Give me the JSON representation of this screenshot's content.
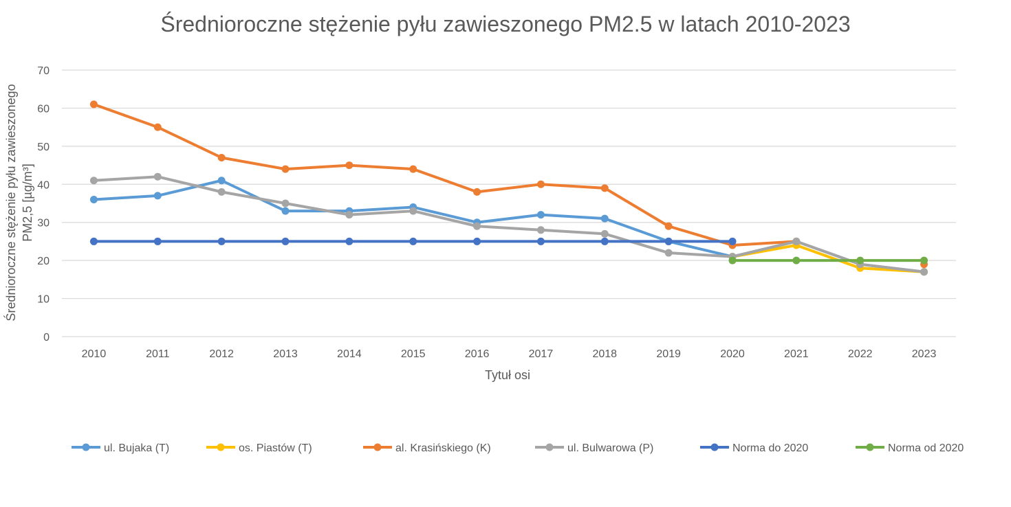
{
  "chart_data": {
    "type": "line",
    "title": "Średnioroczne stężenie pyłu zawieszonego PM2.5 w latach 2010-2023",
    "xlabel": "Tytuł osi",
    "ylabel_line1": "Średnioroczne stężenie pyłu zawieszonego",
    "ylabel_line2": "PM2,5 [µg/m³]",
    "ylim": [
      0,
      70
    ],
    "yticks": [
      "0",
      "10",
      "20",
      "30",
      "40",
      "50",
      "60",
      "70"
    ],
    "categories": [
      "2010",
      "2011",
      "2012",
      "2013",
      "2014",
      "2015",
      "2016",
      "2017",
      "2018",
      "2019",
      "2020",
      "2021",
      "2022",
      "2023"
    ],
    "grid": true,
    "legend_position": "bottom",
    "series": [
      {
        "name": "ul. Bujaka (T)",
        "color": "#5b9bd5",
        "values": [
          36,
          37,
          41,
          33,
          33,
          34,
          30,
          32,
          31,
          25,
          21,
          25,
          19,
          17
        ]
      },
      {
        "name": "os. Piastów (T)",
        "color": "#ffc000",
        "values": [
          null,
          null,
          null,
          null,
          null,
          null,
          null,
          null,
          null,
          null,
          21,
          24,
          18,
          17
        ]
      },
      {
        "name": "al. Krasińskiego (K)",
        "color": "#ed7d31",
        "values": [
          61,
          55,
          47,
          44,
          45,
          44,
          38,
          40,
          39,
          29,
          24,
          25,
          null,
          19
        ]
      },
      {
        "name": "ul. Bulwarowa (P)",
        "color": "#a5a5a5",
        "values": [
          41,
          42,
          38,
          35,
          32,
          33,
          29,
          28,
          27,
          22,
          21,
          25,
          19,
          17
        ]
      },
      {
        "name": "Norma do 2020",
        "color": "#4472c4",
        "values": [
          25,
          25,
          25,
          25,
          25,
          25,
          25,
          25,
          25,
          25,
          25,
          null,
          null,
          null
        ]
      },
      {
        "name": "Norma od 2020",
        "color": "#70ad47",
        "values": [
          null,
          null,
          null,
          null,
          null,
          null,
          null,
          null,
          null,
          null,
          20,
          20,
          20,
          20
        ]
      }
    ]
  }
}
